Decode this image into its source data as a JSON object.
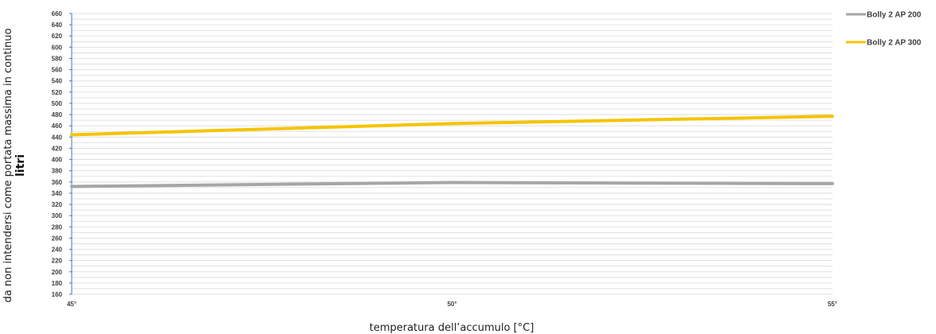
{
  "chart_data": {
    "type": "line",
    "title": "",
    "xlabel": "temperatura dell’accumulo [°C]",
    "ylabel_bold": "litri",
    "ylabel": "da non intendersi come portata massima in continuo",
    "categories": [
      "45°",
      "50°",
      "55°"
    ],
    "ylim": [
      160,
      660
    ],
    "ytick_step": 10,
    "ytick_label_step": 20,
    "grid": true,
    "legend_position": "right",
    "series": [
      {
        "name": "Bolly 2 AP 200",
        "values": [
          352,
          359,
          357
        ],
        "color": "#A6A6A6"
      },
      {
        "name": "Bolly 2 AP 300",
        "values": [
          444,
          464,
          477
        ],
        "color": "#F5C400"
      }
    ],
    "axis_color": "#4472C4",
    "grid_color": "#D9D9D9"
  }
}
